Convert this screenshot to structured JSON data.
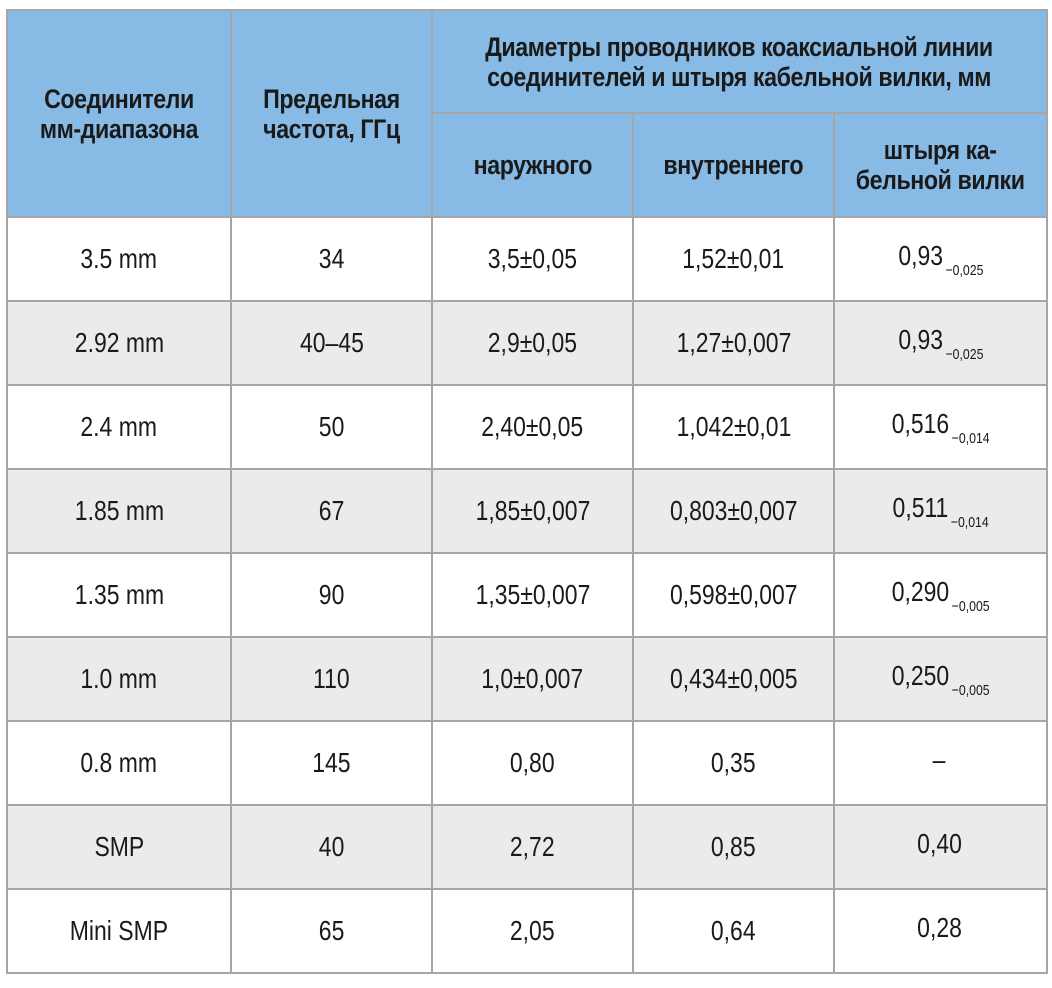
{
  "table": {
    "headers": {
      "connector": [
        "Соединители",
        "мм-диапазона"
      ],
      "freq": [
        "Предельная",
        "частота, ГГц"
      ],
      "diameters_group": [
        "Диаметры проводников коаксиальной линии",
        "соединителей и штыря кабельной вилки, мм"
      ],
      "outer": "наружного",
      "inner": "внутреннего",
      "pin": [
        "штыря ка-",
        "бельной вилки"
      ]
    },
    "rows": [
      {
        "connector": "3.5 mm",
        "freq": "34",
        "outer": "3,5±0,05",
        "inner": "1,52±0,01",
        "pin": "0,93",
        "pin_tol": "−0,025"
      },
      {
        "connector": "2.92 mm",
        "freq": "40–45",
        "outer": "2,9±0,05",
        "inner": "1,27±0,007",
        "pin": "0,93",
        "pin_tol": "−0,025"
      },
      {
        "connector": "2.4 mm",
        "freq": "50",
        "outer": "2,40±0,05",
        "inner": "1,042±0,01",
        "pin": "0,516",
        "pin_tol": "−0,014"
      },
      {
        "connector": "1.85 mm",
        "freq": "67",
        "outer": "1,85±0,007",
        "inner": "0,803±0,007",
        "pin": "0,511",
        "pin_tol": "−0,014"
      },
      {
        "connector": "1.35 mm",
        "freq": "90",
        "outer": "1,35±0,007",
        "inner": "0,598±0,007",
        "pin": "0,290",
        "pin_tol": "−0,005"
      },
      {
        "connector": "1.0 mm",
        "freq": "110",
        "outer": "1,0±0,007",
        "inner": "0,434±0,005",
        "pin": "0,250",
        "pin_tol": "−0,005"
      },
      {
        "connector": "0.8 mm",
        "freq": "145",
        "outer": "0,80",
        "inner": "0,35",
        "pin": "–",
        "pin_tol": ""
      },
      {
        "connector": "SMP",
        "freq": "40",
        "outer": "2,72",
        "inner": "0,85",
        "pin": "0,40",
        "pin_tol": ""
      },
      {
        "connector": "Mini SMP",
        "freq": "65",
        "outer": "2,05",
        "inner": "0,64",
        "pin": "0,28",
        "pin_tol": ""
      }
    ]
  },
  "colors": {
    "header_bg": "#87bbe6",
    "alt_row_bg": "#ebebeb",
    "border": "#a6a6a6"
  }
}
